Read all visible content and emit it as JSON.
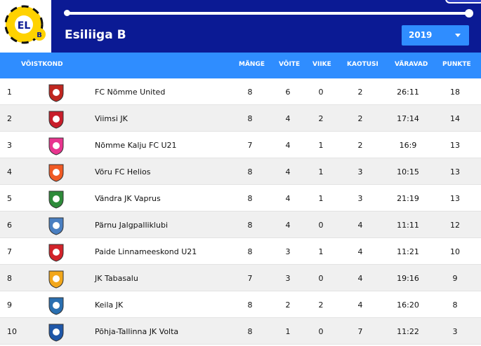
{
  "app": {
    "title": "Esiliiga B",
    "season_label": "2019"
  },
  "table": {
    "headers": {
      "team": "VÕISTKOND",
      "played": "MÄNGE",
      "wins": "VÕITE",
      "draws": "VIIKE",
      "losses": "KAOTUSI",
      "goals": "VÄRAVAD",
      "points": "PUNKTE"
    },
    "rows": [
      {
        "pos": "1",
        "team": "FC Nõmme United",
        "played": "8",
        "wins": "6",
        "draws": "0",
        "losses": "2",
        "goals": "26:11",
        "points": "18",
        "icon": "nomme-united-crest-icon",
        "color": "#c0261f"
      },
      {
        "pos": "2",
        "team": "Viimsi JK",
        "played": "8",
        "wins": "4",
        "draws": "2",
        "losses": "2",
        "goals": "17:14",
        "points": "14",
        "icon": "viimsi-crest-icon",
        "color": "#c81d2a"
      },
      {
        "pos": "3",
        "team": "Nõmme Kalju FC U21",
        "played": "7",
        "wins": "4",
        "draws": "1",
        "losses": "2",
        "goals": "16:9",
        "points": "13",
        "icon": "kalju-crest-icon",
        "color": "#e8358f"
      },
      {
        "pos": "4",
        "team": "Võru FC Helios",
        "played": "8",
        "wins": "4",
        "draws": "1",
        "losses": "3",
        "goals": "10:15",
        "points": "13",
        "icon": "helios-crest-icon",
        "color": "#f05a24"
      },
      {
        "pos": "5",
        "team": "Vändra JK Vaprus",
        "played": "8",
        "wins": "4",
        "draws": "1",
        "losses": "3",
        "goals": "21:19",
        "points": "13",
        "icon": "vaprus-crest-icon",
        "color": "#2e8b3a"
      },
      {
        "pos": "6",
        "team": "Pärnu Jalgpalliklubi",
        "played": "8",
        "wins": "4",
        "draws": "0",
        "losses": "4",
        "goals": "11:11",
        "points": "12",
        "icon": "parnu-crest-icon",
        "color": "#4a7fc1"
      },
      {
        "pos": "7",
        "team": "Paide Linnameeskond U21",
        "played": "8",
        "wins": "3",
        "draws": "1",
        "losses": "4",
        "goals": "11:21",
        "points": "10",
        "icon": "paide-crest-icon",
        "color": "#d2232a"
      },
      {
        "pos": "8",
        "team": "JK Tabasalu",
        "played": "7",
        "wins": "3",
        "draws": "0",
        "losses": "4",
        "goals": "19:16",
        "points": "9",
        "icon": "tabasalu-crest-icon",
        "color": "#f2a71b"
      },
      {
        "pos": "9",
        "team": "Keila JK",
        "played": "8",
        "wins": "2",
        "draws": "2",
        "losses": "4",
        "goals": "16:20",
        "points": "8",
        "icon": "keila-crest-icon",
        "color": "#2a6fb0"
      },
      {
        "pos": "10",
        "team": "Põhja-Tallinna JK Volta",
        "played": "8",
        "wins": "1",
        "draws": "0",
        "losses": "7",
        "goals": "11:22",
        "points": "3",
        "icon": "volta-crest-icon",
        "color": "#1f57a8"
      }
    ]
  },
  "colors": {
    "header_bg": "#0b1a94",
    "accent": "#2f8dff",
    "logo_yellow": "#ffd200"
  }
}
